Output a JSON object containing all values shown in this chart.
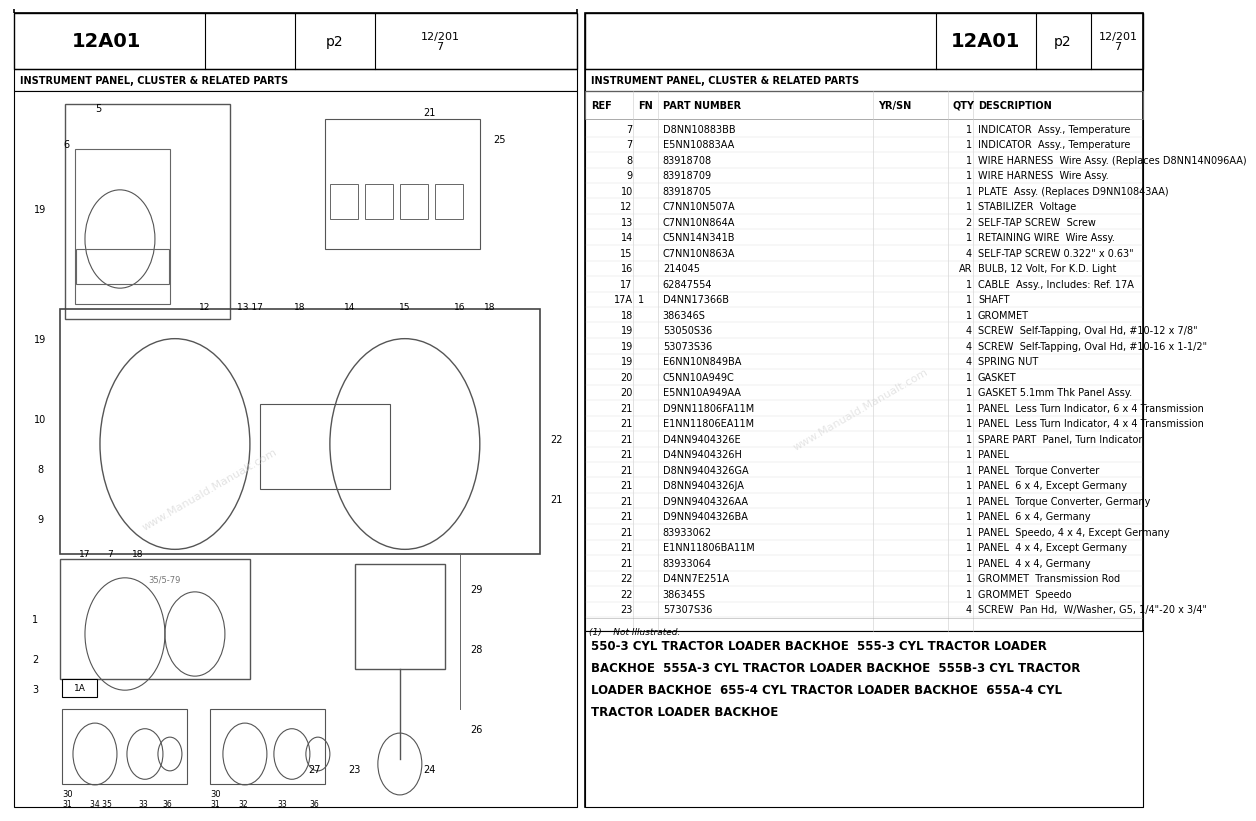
{
  "page_id": "12A01",
  "page_num": "p2",
  "date": "12/201\n7",
  "section_title": "INSTRUMENT PANEL, CLUSTER & RELATED PARTS",
  "table_headers": [
    "REF",
    "FN",
    "PART NUMBER",
    "YR/SN",
    "QTY",
    "DESCRIPTION"
  ],
  "table_rows": [
    [
      "7",
      "",
      "D8NN10883BB",
      "",
      "1",
      "INDICATOR  Assy., Temperature"
    ],
    [
      "7",
      "",
      "E5NN10883AA",
      "",
      "1",
      "INDICATOR  Assy., Temperature"
    ],
    [
      "8",
      "",
      "83918708",
      "",
      "1",
      "WIRE HARNESS  Wire Assy. (Replaces D8NN14N096AA)"
    ],
    [
      "9",
      "",
      "83918709",
      "",
      "1",
      "WIRE HARNESS  Wire Assy."
    ],
    [
      "10",
      "",
      "83918705",
      "",
      "1",
      "PLATE  Assy. (Replaces D9NN10843AA)"
    ],
    [
      "12",
      "",
      "C7NN10N507A",
      "",
      "1",
      "STABILIZER  Voltage"
    ],
    [
      "13",
      "",
      "C7NN10N864A",
      "",
      "2",
      "SELF-TAP SCREW  Screw"
    ],
    [
      "14",
      "",
      "C5NN14N341B",
      "",
      "1",
      "RETAINING WIRE  Wire Assy."
    ],
    [
      "15",
      "",
      "C7NN10N863A",
      "",
      "4",
      "SELF-TAP SCREW 0.322\" x 0.63\""
    ],
    [
      "16",
      "",
      "214045",
      "",
      "AR",
      "BULB, 12 Volt, For K.D. Light"
    ],
    [
      "17",
      "",
      "62847554",
      "",
      "1",
      "CABLE  Assy., Includes: Ref. 17A"
    ],
    [
      "17A",
      "1",
      "D4NN17366B",
      "",
      "1",
      "SHAFT"
    ],
    [
      "18",
      "",
      "386346S",
      "",
      "1",
      "GROMMET"
    ],
    [
      "19",
      "",
      "53050S36",
      "",
      "4",
      "SCREW  Self-Tapping, Oval Hd, #10-12 x 7/8\""
    ],
    [
      "19",
      "",
      "53073S36",
      "",
      "4",
      "SCREW  Self-Tapping, Oval Hd, #10-16 x 1-1/2\""
    ],
    [
      "19",
      "",
      "E6NN10N849BA",
      "",
      "4",
      "SPRING NUT"
    ],
    [
      "20",
      "",
      "C5NN10A949C",
      "",
      "1",
      "GASKET"
    ],
    [
      "20",
      "",
      "E5NN10A949AA",
      "",
      "1",
      "GASKET 5.1mm Thk Panel Assy."
    ],
    [
      "21",
      "",
      "D9NN11806FA11M",
      "",
      "1",
      "PANEL  Less Turn Indicator, 6 x 4 Transmission"
    ],
    [
      "21",
      "",
      "E1NN11806EA11M",
      "",
      "1",
      "PANEL  Less Turn Indicator, 4 x 4 Transmission"
    ],
    [
      "21",
      "",
      "D4NN9404326E",
      "",
      "1",
      "SPARE PART  Panel, Turn Indicator"
    ],
    [
      "21",
      "",
      "D4NN9404326H",
      "",
      "1",
      "PANEL"
    ],
    [
      "21",
      "",
      "D8NN9404326GA",
      "",
      "1",
      "PANEL  Torque Converter"
    ],
    [
      "21",
      "",
      "D8NN9404326JA",
      "",
      "1",
      "PANEL  6 x 4, Except Germany"
    ],
    [
      "21",
      "",
      "D9NN9404326AA",
      "",
      "1",
      "PANEL  Torque Converter, Germany"
    ],
    [
      "21",
      "",
      "D9NN9404326BA",
      "",
      "1",
      "PANEL  6 x 4, Germany"
    ],
    [
      "21",
      "",
      "83933062",
      "",
      "1",
      "PANEL  Speedo, 4 x 4, Except Germany"
    ],
    [
      "21",
      "",
      "E1NN11806BA11M",
      "",
      "1",
      "PANEL  4 x 4, Except Germany"
    ],
    [
      "21",
      "",
      "83933064",
      "",
      "1",
      "PANEL  4 x 4, Germany"
    ],
    [
      "22",
      "",
      "D4NN7E251A",
      "",
      "1",
      "GROMMET  Transmission Rod"
    ],
    [
      "22",
      "",
      "386345S",
      "",
      "1",
      "GROMMET  Speedo"
    ],
    [
      "23",
      "",
      "57307S36",
      "",
      "4",
      "SCREW  Pan Hd,  W/Washer, G5, 1/4\"-20 x 3/4\""
    ]
  ],
  "footnote": "(1)    Not Illustrated.",
  "footer_lines": [
    "550-3 CYL TRACTOR LOADER BACKHOE  555-3 CYL TRACTOR LOADER",
    "BACKHOE  555A-3 CYL TRACTOR LOADER BACKHOE  555B-3 CYL TRACTOR",
    "LOADER BACKHOE  655-4 CYL TRACTOR LOADER BACKHOE  655A-4 CYL",
    "TRACTOR LOADER BACKHOE"
  ],
  "bg_color": "#ffffff",
  "border_color": "#000000",
  "watermark_text": "www.Manuald.Manualt.com"
}
